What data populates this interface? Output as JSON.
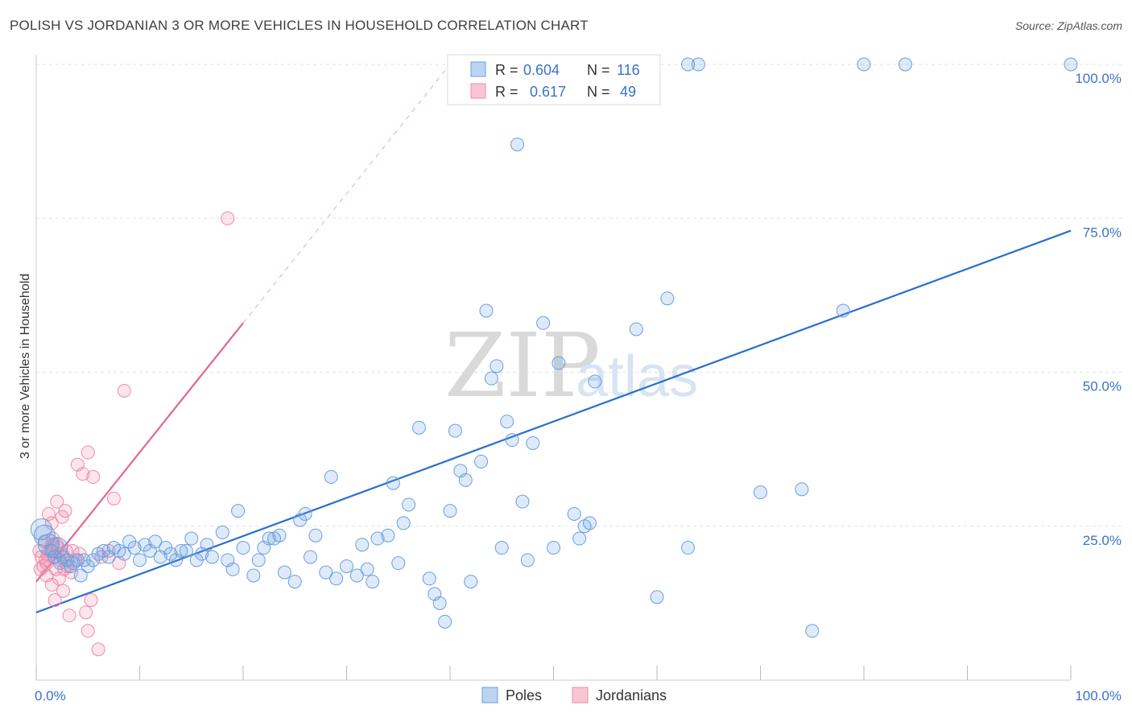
{
  "header": {
    "title": "POLISH VS JORDANIAN 3 OR MORE VEHICLES IN HOUSEHOLD CORRELATION CHART",
    "source": "Source: ZipAtlas.com"
  },
  "watermark": {
    "zip": "ZIP",
    "atlas": "atlas"
  },
  "colors": {
    "poles": "#6a9fe0",
    "poles_line": "#2a6fcf",
    "jordanians": "#f08aaa",
    "jordanians_line": "#e0688f",
    "tick_text": "#3a72c8",
    "grid": "#e2e2e2"
  },
  "legend": {
    "rows": [
      {
        "r_label": "R =",
        "r_value": "0.604",
        "n_label": "N =",
        "n_value": "116"
      },
      {
        "r_label": "R =",
        "r_value": "0.617",
        "n_label": "N =",
        "n_value": "49"
      }
    ]
  },
  "bottom_legend": [
    "Poles",
    "Jordanians"
  ],
  "chart_data": {
    "type": "scatter",
    "title": "POLISH VS JORDANIAN 3 OR MORE VEHICLES IN HOUSEHOLD CORRELATION CHART",
    "xlabel": "",
    "ylabel": "3 or more Vehicles in Household",
    "xlim": [
      0,
      100
    ],
    "ylim": [
      0,
      100
    ],
    "x_ticks": [
      "0.0%",
      "100.0%"
    ],
    "y_ticks": [
      {
        "value": 25,
        "label": "25.0%"
      },
      {
        "value": 50,
        "label": "50.0%"
      },
      {
        "value": 75,
        "label": "75.0%"
      },
      {
        "value": 100,
        "label": "100.0%"
      }
    ],
    "grid": true,
    "legend_position": "top-center",
    "series": [
      {
        "name": "Poles",
        "r": 0.604,
        "n": 116,
        "trend": {
          "x": [
            0,
            100
          ],
          "y": [
            11,
            73
          ]
        },
        "points": [
          [
            0.5,
            24.5
          ],
          [
            0.8,
            23.5
          ],
          [
            1.2,
            22
          ],
          [
            1.5,
            21
          ],
          [
            1.8,
            20
          ],
          [
            2,
            21.5
          ],
          [
            2.3,
            19
          ],
          [
            2.6,
            20
          ],
          [
            3,
            19.5
          ],
          [
            3.3,
            18.5
          ],
          [
            3.6,
            19
          ],
          [
            4,
            19.5
          ],
          [
            4.3,
            17
          ],
          [
            4.6,
            19.5
          ],
          [
            5,
            18.5
          ],
          [
            5.5,
            19.5
          ],
          [
            6,
            20.5
          ],
          [
            6.5,
            21
          ],
          [
            7,
            20
          ],
          [
            7.5,
            21.5
          ],
          [
            8,
            21
          ],
          [
            8.5,
            20.5
          ],
          [
            9,
            22.5
          ],
          [
            9.5,
            21.5
          ],
          [
            10,
            19.5
          ],
          [
            10.5,
            22
          ],
          [
            11,
            21
          ],
          [
            11.5,
            22.5
          ],
          [
            12,
            20
          ],
          [
            12.5,
            21.5
          ],
          [
            13,
            20.5
          ],
          [
            13.5,
            19.5
          ],
          [
            14,
            21
          ],
          [
            14.5,
            21
          ],
          [
            15,
            23
          ],
          [
            15.5,
            19.5
          ],
          [
            16,
            20.5
          ],
          [
            16.5,
            22
          ],
          [
            17,
            20
          ],
          [
            18,
            24
          ],
          [
            18.5,
            19.5
          ],
          [
            19,
            18
          ],
          [
            19.5,
            27.5
          ],
          [
            20,
            21.5
          ],
          [
            21,
            17
          ],
          [
            21.5,
            19.5
          ],
          [
            22,
            21.5
          ],
          [
            22.5,
            23
          ],
          [
            23,
            23
          ],
          [
            23.5,
            23.5
          ],
          [
            24,
            17.5
          ],
          [
            25,
            16
          ],
          [
            25.5,
            26
          ],
          [
            26,
            27
          ],
          [
            26.5,
            20
          ],
          [
            27,
            23.5
          ],
          [
            28,
            17.5
          ],
          [
            28.5,
            33
          ],
          [
            29,
            16.5
          ],
          [
            30,
            18.5
          ],
          [
            31,
            17
          ],
          [
            31.5,
            22
          ],
          [
            32,
            18
          ],
          [
            32.5,
            16
          ],
          [
            33,
            23
          ],
          [
            34,
            23.5
          ],
          [
            34.5,
            32
          ],
          [
            35,
            19
          ],
          [
            35.5,
            25.5
          ],
          [
            36,
            28.5
          ],
          [
            37,
            41
          ],
          [
            38,
            16.5
          ],
          [
            38.5,
            14
          ],
          [
            39,
            12.5
          ],
          [
            39.5,
            9.5
          ],
          [
            40,
            27.5
          ],
          [
            40.5,
            40.5
          ],
          [
            41,
            34
          ],
          [
            41.5,
            32.5
          ],
          [
            42,
            16
          ],
          [
            43,
            35.5
          ],
          [
            43.5,
            60
          ],
          [
            44,
            49
          ],
          [
            44.5,
            51
          ],
          [
            45,
            21.5
          ],
          [
            45.5,
            42
          ],
          [
            46,
            39
          ],
          [
            46.5,
            87
          ],
          [
            47,
            29
          ],
          [
            47.5,
            19.5
          ],
          [
            48,
            38.5
          ],
          [
            49,
            58
          ],
          [
            50,
            21.5
          ],
          [
            50.5,
            51.5
          ],
          [
            52,
            27
          ],
          [
            52.5,
            23
          ],
          [
            53,
            25
          ],
          [
            53.5,
            25.5
          ],
          [
            54,
            48.5
          ],
          [
            58,
            57
          ],
          [
            60,
            13.5
          ],
          [
            61,
            62
          ],
          [
            63,
            21.5
          ],
          [
            70,
            30.5
          ],
          [
            74,
            31
          ],
          [
            75,
            8
          ],
          [
            78,
            60
          ],
          [
            50,
            100
          ],
          [
            48.5,
            100
          ],
          [
            63,
            100
          ],
          [
            80,
            100
          ],
          [
            84,
            100
          ],
          [
            100,
            100
          ],
          [
            64,
            100
          ],
          [
            55,
            100
          ],
          [
            57,
            100
          ]
        ]
      },
      {
        "name": "Jordanians",
        "r": 0.617,
        "n": 49,
        "trend": {
          "x": [
            0,
            20
          ],
          "y": [
            16,
            58
          ]
        },
        "trend_dashed": {
          "x": [
            20,
            40
          ],
          "y": [
            58,
            100
          ]
        },
        "points": [
          [
            0.3,
            21
          ],
          [
            0.5,
            20
          ],
          [
            0.7,
            18.5
          ],
          [
            0.9,
            19.5
          ],
          [
            1.1,
            20.5
          ],
          [
            1.3,
            21
          ],
          [
            1.5,
            22
          ],
          [
            1.7,
            20
          ],
          [
            1.9,
            18
          ],
          [
            2.1,
            21.5
          ],
          [
            2.3,
            19.5
          ],
          [
            2.5,
            20.5
          ],
          [
            1.2,
            27
          ],
          [
            1.5,
            25.5
          ],
          [
            2,
            29
          ],
          [
            2.5,
            26.5
          ],
          [
            2.8,
            27.5
          ],
          [
            1,
            17
          ],
          [
            1.5,
            15.5
          ],
          [
            2.2,
            16.5
          ],
          [
            2.6,
            14.5
          ],
          [
            3,
            18.5
          ],
          [
            3.5,
            21
          ],
          [
            4,
            35
          ],
          [
            4.5,
            33.5
          ],
          [
            5,
            37
          ],
          [
            5.5,
            33
          ],
          [
            3.2,
            10.5
          ],
          [
            4.8,
            11
          ],
          [
            5.3,
            13
          ],
          [
            5,
            8
          ],
          [
            6,
            5
          ],
          [
            7.5,
            29.5
          ],
          [
            8.5,
            47
          ],
          [
            8,
            19
          ],
          [
            3.8,
            19.5
          ],
          [
            1.8,
            13
          ],
          [
            0.8,
            22.5
          ],
          [
            1.6,
            23
          ],
          [
            2.9,
            21
          ],
          [
            0.4,
            18
          ],
          [
            3.4,
            17.5
          ],
          [
            6.3,
            20
          ],
          [
            7,
            21
          ],
          [
            1,
            19
          ],
          [
            2,
            22
          ],
          [
            2.7,
            18
          ],
          [
            18.5,
            75
          ],
          [
            4.2,
            20.5
          ]
        ]
      }
    ]
  }
}
